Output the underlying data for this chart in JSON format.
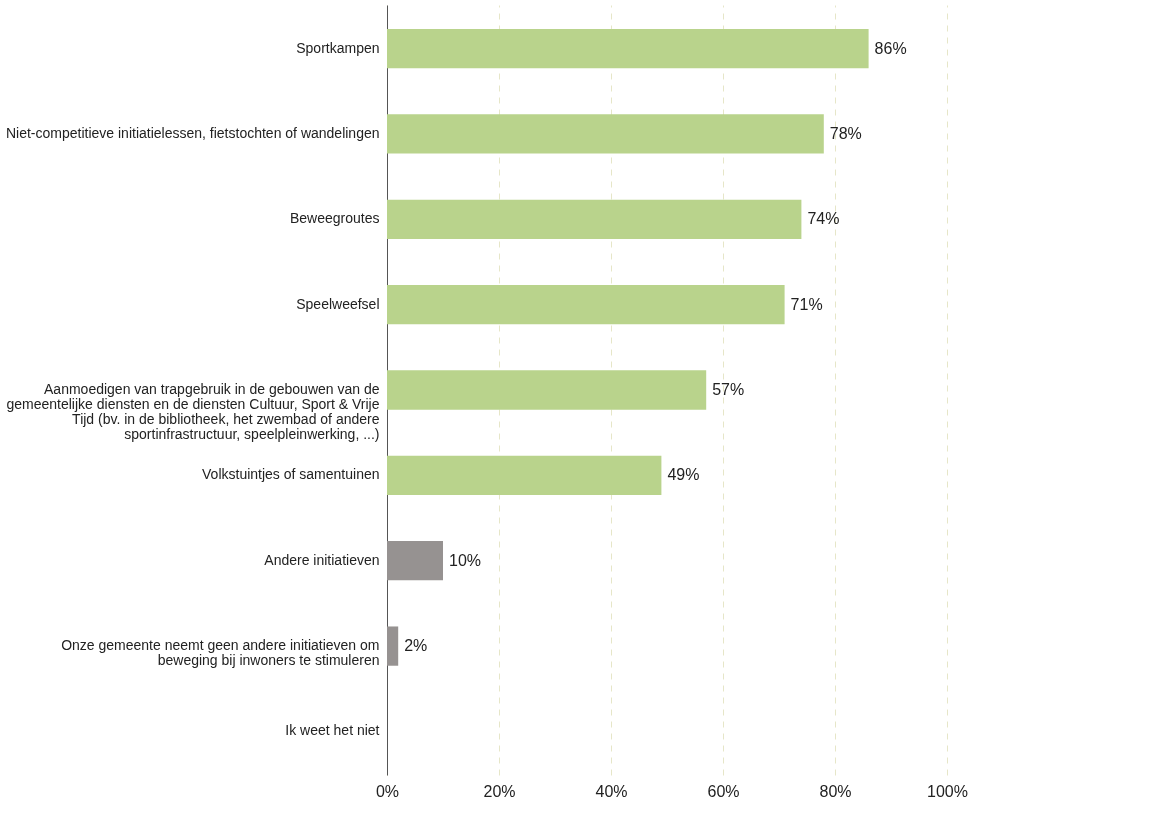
{
  "chart_data": {
    "type": "bar",
    "orientation": "horizontal",
    "categories": [
      "Sportkampen",
      "Niet-competitieve initiatielessen, fietstochten of wandelingen",
      "Beweegroutes",
      "Speelweefsel",
      "Aanmoedigen van trapgebruik in de gebouwen van de\ngemeentelijke diensten en de diensten Cultuur, Sport & Vrije\nTijd (bv. in de bibliotheek, het zwembad of andere\nsportinfrastructuur, speelpleinwerking, ...)",
      "Volkstuintjes of samentuinen",
      "Andere initiatieven",
      "Onze gemeente neemt geen andere initiatieven om\nbeweging bij inwoners te stimuleren",
      "Ik weet het niet"
    ],
    "values": [
      86,
      78,
      74,
      71,
      57,
      49,
      10,
      2,
      0
    ],
    "colors": [
      "#b9d38c",
      "#b9d38c",
      "#b9d38c",
      "#b9d38c",
      "#b9d38c",
      "#b9d38c",
      "#969291",
      "#969291",
      "#969291"
    ],
    "value_labels": [
      "86%",
      "78%",
      "74%",
      "71%",
      "57%",
      "49%",
      "10%",
      "2%",
      null
    ],
    "xlim": [
      0,
      100
    ],
    "xticks": [
      {
        "value": 0,
        "label": "0%"
      },
      {
        "value": 20,
        "label": "20%"
      },
      {
        "value": 40,
        "label": "40%"
      },
      {
        "value": 60,
        "label": "60%"
      },
      {
        "value": 80,
        "label": "80%"
      },
      {
        "value": 100,
        "label": "100%"
      }
    ],
    "grid": "x"
  }
}
